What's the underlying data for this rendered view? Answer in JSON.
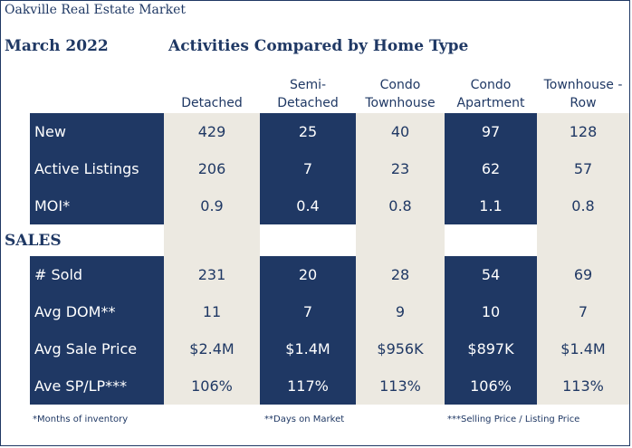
{
  "header": {
    "brand": "Oakville Real Estate Market",
    "date": "March 2022",
    "title": "Activities Compared by Home Type"
  },
  "columns": [
    {
      "line1": "",
      "line2": "Detached"
    },
    {
      "line1": "Semi-",
      "line2": "Detached"
    },
    {
      "line1": "Condo",
      "line2": "Townhouse"
    },
    {
      "line1": "Condo",
      "line2": "Apartment"
    },
    {
      "line1": "Townhouse -",
      "line2": "Row"
    }
  ],
  "listings": {
    "rows": [
      {
        "label": "New",
        "values": [
          "429",
          "25",
          "40",
          "97",
          "128"
        ]
      },
      {
        "label": "Active Listings",
        "values": [
          "206",
          "7",
          "23",
          "62",
          "57"
        ]
      },
      {
        "label": "MOI*",
        "values": [
          "0.9",
          "0.4",
          "0.8",
          "1.1",
          "0.8"
        ]
      }
    ]
  },
  "sales": {
    "heading": "SALES",
    "rows": [
      {
        "label": "# Sold",
        "values": [
          "231",
          "20",
          "28",
          "54",
          "69"
        ]
      },
      {
        "label": "Avg DOM**",
        "values": [
          "11",
          "7",
          "9",
          "10",
          "7"
        ]
      },
      {
        "label": "Avg Sale Price",
        "values": [
          "$2.4M",
          "$1.4M",
          "$956K",
          "$897K",
          "$1.4M"
        ]
      },
      {
        "label": "Ave SP/LP***",
        "values": [
          "106%",
          "117%",
          "113%",
          "106%",
          "113%"
        ]
      }
    ]
  },
  "footnotes": [
    "*Months of inventory",
    "**Days on Market",
    "***Selling Price / Listing Price"
  ],
  "colors": {
    "navy": "#1f3864",
    "beige": "#ece9e1"
  }
}
